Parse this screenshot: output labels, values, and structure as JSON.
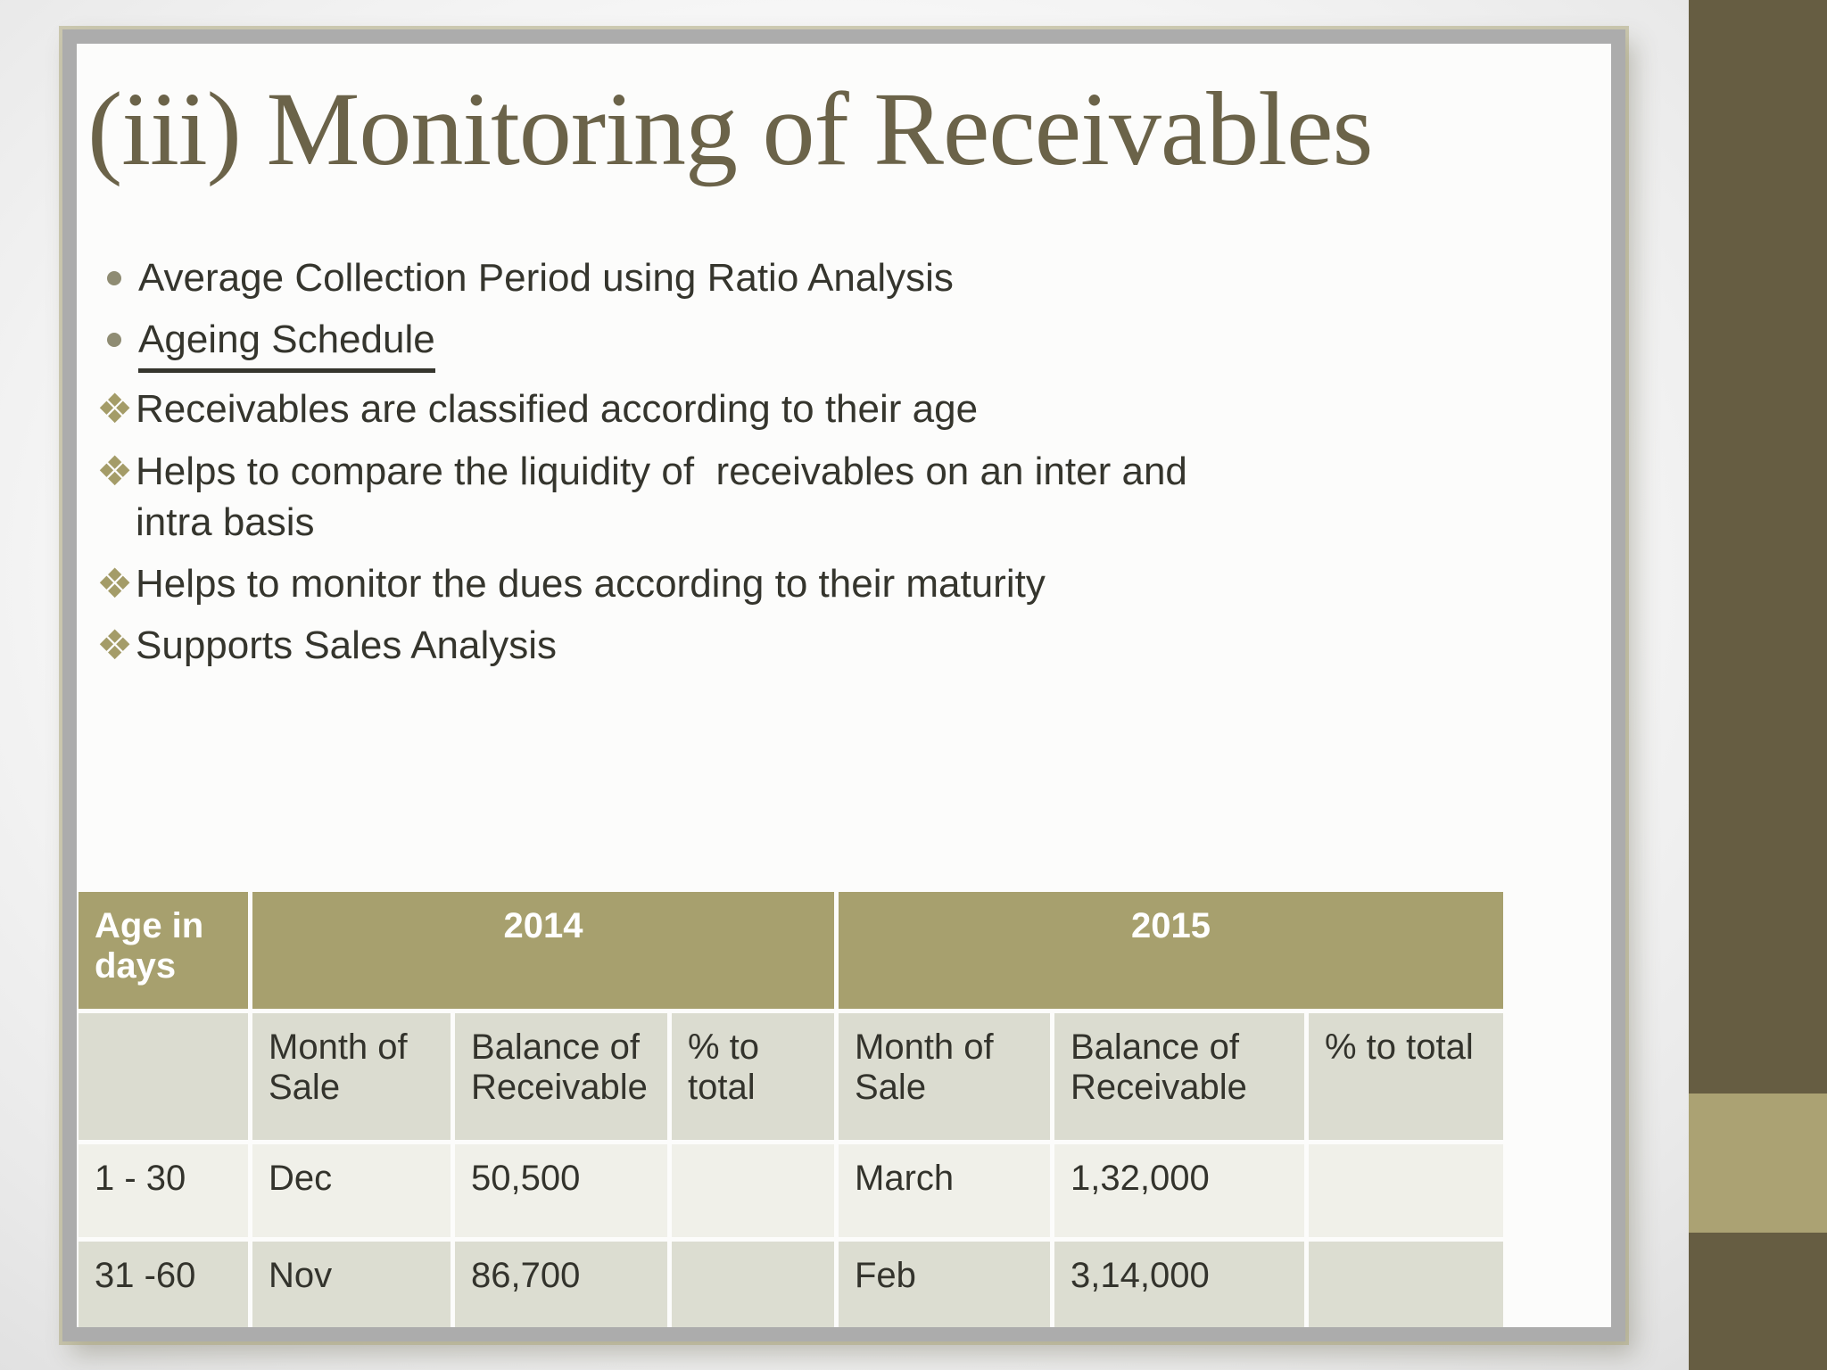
{
  "slide": {
    "title": "(iii) Monitoring of Receivables",
    "diamond_glyph": "❖",
    "bullets": [
      {
        "marker": "dot",
        "text": "Average Collection Period using Ratio Analysis"
      },
      {
        "marker": "dot",
        "text": "Ageing Schedule"
      },
      {
        "marker": "diamond",
        "text": "Receivables are classified according to their age"
      },
      {
        "marker": "diamond",
        "text": "Helps to compare the liquidity of  receivables on an inter and\nintra basis"
      },
      {
        "marker": "diamond",
        "text": "Helps to monitor the dues according to their maturity"
      },
      {
        "marker": "diamond",
        "text": "Supports Sales Analysis"
      }
    ]
  },
  "table": {
    "header_row1": {
      "age_in_days": "Age in days",
      "year_2014": "2014",
      "year_2015": "2015"
    },
    "header_row2": {
      "month_2014": "Month of Sale",
      "balance_2014": "Balance of Receivable",
      "pct_2014": "% to total",
      "month_2015": "Month of Sale",
      "balance_2015": "Balance of Receivable",
      "pct_2015": "% to total"
    },
    "rows": [
      {
        "age": "1 - 30",
        "month_2014": "Dec",
        "balance_2014": "50,500",
        "pct_2014": "",
        "month_2015": "March",
        "balance_2015": "1,32,000",
        "pct_2015": ""
      },
      {
        "age": "31 -60",
        "month_2014": "Nov",
        "balance_2014": "86,700",
        "pct_2014": "",
        "month_2015": "Feb",
        "balance_2015": "3,14,000",
        "pct_2015": ""
      }
    ]
  },
  "colors": {
    "title_text": "#6b6349",
    "body_text": "#35352d",
    "accent_olive": "#a7a06e",
    "table_header_bg": "#a7a06e",
    "table_subheader_bg": "#dbdcd0",
    "table_row_light_bg": "#f0f0e9",
    "table_row_dark_bg": "#dcddd1",
    "sidebar_dark": "#665d42",
    "sidebar_light": "#aba273",
    "frame_border": "#acacac"
  }
}
